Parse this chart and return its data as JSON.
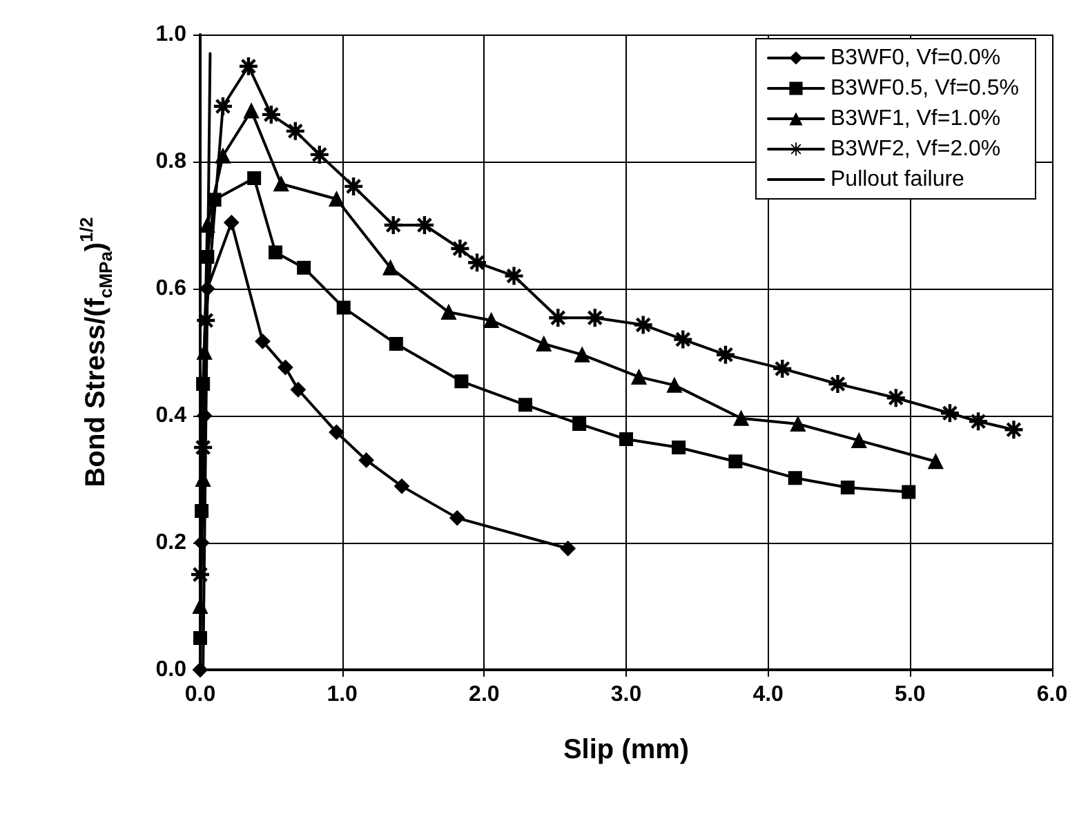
{
  "chart_data": {
    "type": "line",
    "xlabel": "Slip (mm)",
    "ylabel": "Bond Stress/(f$_{cMPa}$)$^{1/2}$",
    "xlim": [
      0,
      6
    ],
    "xticks": [
      {
        "value": 0,
        "label": "0.0"
      },
      {
        "value": 1,
        "label": "1.0"
      },
      {
        "value": 2,
        "label": "2.0"
      },
      {
        "value": 3,
        "label": "3.0"
      },
      {
        "value": 4,
        "label": "4.0"
      },
      {
        "value": 5,
        "label": "5.0"
      },
      {
        "value": 6,
        "label": "6.0"
      }
    ],
    "ylim": [
      0,
      1
    ],
    "yticks": [
      {
        "value": 0,
        "label": "0.0"
      },
      {
        "value": 0.2,
        "label": "0.2"
      },
      {
        "value": 0.4,
        "label": "0.4"
      },
      {
        "value": 0.6,
        "label": "0.6"
      },
      {
        "value": 0.8,
        "label": "0.8"
      },
      {
        "value": 1,
        "label": "1.0"
      }
    ],
    "grid": true,
    "legend": "top right",
    "line_style": "solid",
    "series": [
      {
        "name": "B3WF0, Vf=0.0%",
        "color": "#000000",
        "marker": "diamond",
        "x": [
          0,
          0.01,
          0.03,
          0.05,
          0.22,
          0.44,
          0.6,
          0.69,
          0.96,
          1.17,
          1.42,
          1.81,
          2.59
        ],
        "values": [
          0,
          0.2,
          0.4,
          0.6,
          0.704,
          0.517,
          0.476,
          0.441,
          0.374,
          0.33,
          0.289,
          0.239,
          0.191
        ]
      },
      {
        "name": "B3WF0.5, Vf=0.5%",
        "color": "#000000",
        "marker": "square",
        "x": [
          0,
          0.01,
          0.02,
          0.05,
          0.1,
          0.38,
          0.53,
          0.73,
          1.01,
          1.38,
          1.84,
          2.29,
          2.67,
          3.0,
          3.37,
          3.77,
          4.19,
          4.56,
          4.99
        ],
        "values": [
          0.05,
          0.25,
          0.45,
          0.65,
          0.74,
          0.774,
          0.657,
          0.633,
          0.57,
          0.513,
          0.454,
          0.417,
          0.387,
          0.363,
          0.35,
          0.328,
          0.302,
          0.287,
          0.28
        ]
      },
      {
        "name": "B3WF1, Vf=1.0%",
        "color": "#000000",
        "marker": "triangle",
        "x": [
          0,
          0.02,
          0.03,
          0.05,
          0.16,
          0.36,
          0.57,
          0.96,
          1.34,
          1.75,
          2.05,
          2.42,
          2.69,
          3.09,
          3.34,
          3.81,
          4.21,
          4.64,
          5.18
        ],
        "values": [
          0.1,
          0.3,
          0.5,
          0.7,
          0.809,
          0.88,
          0.765,
          0.741,
          0.633,
          0.563,
          0.55,
          0.513,
          0.496,
          0.461,
          0.448,
          0.396,
          0.387,
          0.361,
          0.328
        ]
      },
      {
        "name": "B3WF2, Vf=2.0%",
        "color": "#000000",
        "marker": "star",
        "x": [
          0,
          0.02,
          0.04,
          0.16,
          0.34,
          0.5,
          0.67,
          0.84,
          1.08,
          1.36,
          1.58,
          1.83,
          1.95,
          2.21,
          2.52,
          2.78,
          3.12,
          3.4,
          3.7,
          4.1,
          4.49,
          4.9,
          5.28,
          5.48,
          5.73
        ],
        "values": [
          0.15,
          0.35,
          0.55,
          0.887,
          0.95,
          0.874,
          0.848,
          0.811,
          0.761,
          0.7,
          0.7,
          0.663,
          0.641,
          0.62,
          0.554,
          0.554,
          0.543,
          0.52,
          0.496,
          0.474,
          0.45,
          0.428,
          0.404,
          0.391,
          0.378
        ]
      },
      {
        "name": "Pullout failure",
        "color": "#000000",
        "marker": "none",
        "x": [
          0.02,
          0.07
        ],
        "values": [
          0,
          0.97
        ]
      }
    ]
  }
}
